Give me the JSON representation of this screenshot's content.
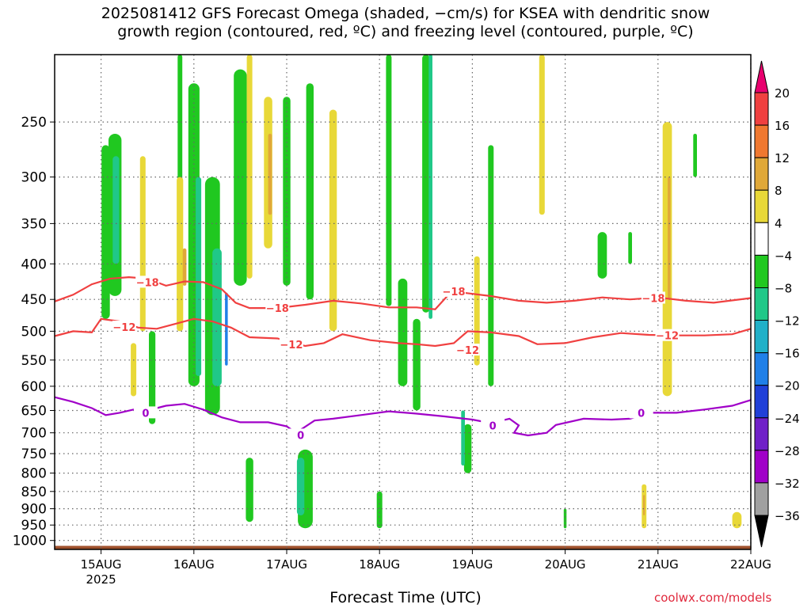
{
  "title": "2025081412 GFS Forecast Omega (shaded, −cm/s) for KSEA with dendritic snow\ngrowth region (contoured, red, ºC) and freezing level (contoured, purple, ºC)",
  "credit": "coolwx.com/models",
  "colors": {
    "dgz_contour": "#f04040",
    "freezing_level": "#a000c8",
    "terrain": "#a0522d",
    "grid": "#666666"
  },
  "chart_data": {
    "type": "heatmap",
    "title": "2025081412 GFS Forecast Omega (shaded, −cm/s) for KSEA with dendritic snow growth region (contoured, red, ºC) and freezing level (contoured, purple, ºC)",
    "xlabel": "Forecast Time (UTC)",
    "ylabel": "",
    "x_start": "2025-08-14 12Z",
    "x_end": "2025-08-22 00Z",
    "xlim": [
      14.5,
      22.0
    ],
    "x_ticks": [
      {
        "day": 15,
        "label": "15AUG",
        "sub": "2025"
      },
      {
        "day": 16,
        "label": "16AUG",
        "sub": ""
      },
      {
        "day": 17,
        "label": "17AUG",
        "sub": ""
      },
      {
        "day": 18,
        "label": "18AUG",
        "sub": ""
      },
      {
        "day": 19,
        "label": "19AUG",
        "sub": ""
      },
      {
        "day": 20,
        "label": "20AUG",
        "sub": ""
      },
      {
        "day": 21,
        "label": "21AUG",
        "sub": ""
      },
      {
        "day": 22,
        "label": "22AUG",
        "sub": ""
      }
    ],
    "y_scale": "log (pressure, hPa)",
    "ylim": [
      1030,
      200
    ],
    "y_ticks": [
      250,
      300,
      350,
      400,
      450,
      500,
      550,
      600,
      650,
      700,
      750,
      800,
      850,
      900,
      950,
      1000
    ],
    "grid": true,
    "colorbar": {
      "labels": [
        "20",
        "16",
        "12",
        "8",
        "4",
        "−4",
        "−8",
        "−12",
        "−16",
        "−20",
        "−24",
        "−28",
        "−32",
        "−36"
      ],
      "colors": [
        "#e8006e",
        "#f04040",
        "#f07830",
        "#e0a838",
        "#e8d838",
        "#ffffff",
        "#20c820",
        "#20c888",
        "#20b0c8",
        "#2080e8",
        "#2040d8",
        "#7020c8",
        "#a000c8",
        "#a0a0a0",
        "#000000"
      ],
      "placement": "right"
    },
    "contours": [
      {
        "name": "-18",
        "color": "#f04040",
        "labels": [
          {
            "day": 15.5,
            "p": 425
          },
          {
            "day": 16.9,
            "p": 463
          },
          {
            "day": 18.8,
            "p": 438
          },
          {
            "day": 20.95,
            "p": 448
          }
        ],
        "points": [
          [
            14.5,
            453
          ],
          [
            14.7,
            443
          ],
          [
            14.9,
            428
          ],
          [
            15.1,
            420
          ],
          [
            15.3,
            418
          ],
          [
            15.5,
            420
          ],
          [
            15.7,
            430
          ],
          [
            15.9,
            424
          ],
          [
            16.1,
            425
          ],
          [
            16.3,
            435
          ],
          [
            16.45,
            455
          ],
          [
            16.6,
            463
          ],
          [
            16.9,
            463
          ],
          [
            17.2,
            458
          ],
          [
            17.5,
            452
          ],
          [
            17.8,
            456
          ],
          [
            18.1,
            462
          ],
          [
            18.4,
            462
          ],
          [
            18.6,
            465
          ],
          [
            18.75,
            442
          ],
          [
            18.9,
            440
          ],
          [
            19.2,
            445
          ],
          [
            19.5,
            452
          ],
          [
            19.8,
            455
          ],
          [
            20.1,
            452
          ],
          [
            20.4,
            447
          ],
          [
            20.7,
            450
          ],
          [
            21.0,
            447
          ],
          [
            21.3,
            452
          ],
          [
            21.6,
            455
          ],
          [
            22.0,
            448
          ]
        ]
      },
      {
        "name": "-12",
        "color": "#f04040",
        "labels": [
          {
            "day": 15.25,
            "p": 493
          },
          {
            "day": 17.05,
            "p": 522
          },
          {
            "day": 18.95,
            "p": 532
          },
          {
            "day": 21.1,
            "p": 507
          }
        ],
        "points": [
          [
            14.5,
            508
          ],
          [
            14.7,
            500
          ],
          [
            14.9,
            502
          ],
          [
            15.0,
            480
          ],
          [
            15.2,
            484
          ],
          [
            15.4,
            494
          ],
          [
            15.6,
            496
          ],
          [
            15.8,
            488
          ],
          [
            16.0,
            480
          ],
          [
            16.2,
            484
          ],
          [
            16.4,
            494
          ],
          [
            16.6,
            510
          ],
          [
            16.9,
            512
          ],
          [
            17.2,
            525
          ],
          [
            17.4,
            520
          ],
          [
            17.6,
            505
          ],
          [
            17.9,
            515
          ],
          [
            18.2,
            520
          ],
          [
            18.4,
            522
          ],
          [
            18.6,
            525
          ],
          [
            18.8,
            520
          ],
          [
            18.95,
            500
          ],
          [
            19.2,
            502
          ],
          [
            19.5,
            508
          ],
          [
            19.7,
            522
          ],
          [
            20.0,
            520
          ],
          [
            20.3,
            510
          ],
          [
            20.6,
            503
          ],
          [
            20.9,
            506
          ],
          [
            21.2,
            507
          ],
          [
            21.5,
            507
          ],
          [
            21.8,
            505
          ],
          [
            22.0,
            496
          ]
        ]
      },
      {
        "name": "0",
        "color": "#a000c8",
        "labels": [
          {
            "day": 15.48,
            "p": 655
          },
          {
            "day": 17.15,
            "p": 705
          },
          {
            "day": 19.22,
            "p": 683
          },
          {
            "day": 20.82,
            "p": 655
          }
        ],
        "points": [
          [
            14.5,
            622
          ],
          [
            14.7,
            632
          ],
          [
            14.9,
            645
          ],
          [
            15.05,
            660
          ],
          [
            15.2,
            655
          ],
          [
            15.35,
            648
          ],
          [
            15.5,
            650
          ],
          [
            15.7,
            640
          ],
          [
            15.9,
            636
          ],
          [
            16.1,
            648
          ],
          [
            16.3,
            665
          ],
          [
            16.5,
            676
          ],
          [
            16.8,
            676
          ],
          [
            17.0,
            685
          ],
          [
            17.1,
            700
          ],
          [
            17.3,
            672
          ],
          [
            17.5,
            668
          ],
          [
            17.8,
            660
          ],
          [
            18.1,
            652
          ],
          [
            18.4,
            657
          ],
          [
            18.7,
            663
          ],
          [
            19.0,
            670
          ],
          [
            19.2,
            678
          ],
          [
            19.4,
            668
          ],
          [
            19.5,
            683
          ],
          [
            19.45,
            700
          ],
          [
            19.6,
            706
          ],
          [
            19.8,
            700
          ],
          [
            19.9,
            682
          ],
          [
            20.2,
            668
          ],
          [
            20.5,
            670
          ],
          [
            20.7,
            668
          ],
          [
            20.9,
            655
          ],
          [
            21.2,
            655
          ],
          [
            21.5,
            648
          ],
          [
            21.8,
            640
          ],
          [
            22.0,
            628
          ]
        ]
      }
    ],
    "omega_cells": [
      {
        "day": 15.05,
        "p_top": 270,
        "p_bot": 480,
        "w": 0.09,
        "lvl": "g"
      },
      {
        "day": 15.15,
        "p_top": 260,
        "p_bot": 445,
        "w": 0.14,
        "lvl": "g"
      },
      {
        "day": 15.16,
        "p_top": 280,
        "p_bot": 400,
        "w": 0.07,
        "lvl": "t"
      },
      {
        "day": 15.45,
        "p_top": 280,
        "p_bot": 500,
        "w": 0.06,
        "lvl": "y"
      },
      {
        "day": 15.55,
        "p_top": 500,
        "p_bot": 680,
        "w": 0.07,
        "lvl": "g"
      },
      {
        "day": 15.35,
        "p_top": 520,
        "p_bot": 620,
        "w": 0.06,
        "lvl": "y"
      },
      {
        "day": 15.85,
        "p_top": 200,
        "p_bot": 370,
        "w": 0.05,
        "lvl": "g"
      },
      {
        "day": 15.85,
        "p_top": 300,
        "p_bot": 500,
        "w": 0.07,
        "lvl": "y"
      },
      {
        "day": 15.9,
        "p_top": 380,
        "p_bot": 430,
        "w": 0.04,
        "lvl": "o"
      },
      {
        "day": 16.0,
        "p_top": 220,
        "p_bot": 600,
        "w": 0.12,
        "lvl": "g"
      },
      {
        "day": 16.05,
        "p_top": 300,
        "p_bot": 580,
        "w": 0.06,
        "lvl": "t"
      },
      {
        "day": 16.2,
        "p_top": 300,
        "p_bot": 660,
        "w": 0.16,
        "lvl": "g"
      },
      {
        "day": 16.25,
        "p_top": 380,
        "p_bot": 600,
        "w": 0.1,
        "lvl": "t"
      },
      {
        "day": 16.35,
        "p_top": 440,
        "p_bot": 560,
        "w": 0.03,
        "lvl": "b"
      },
      {
        "day": 16.5,
        "p_top": 210,
        "p_bot": 430,
        "w": 0.14,
        "lvl": "g"
      },
      {
        "day": 16.6,
        "p_top": 200,
        "p_bot": 420,
        "w": 0.06,
        "lvl": "y"
      },
      {
        "day": 16.6,
        "p_top": 760,
        "p_bot": 940,
        "w": 0.08,
        "lvl": "g"
      },
      {
        "day": 16.8,
        "p_top": 230,
        "p_bot": 380,
        "w": 0.09,
        "lvl": "y"
      },
      {
        "day": 16.82,
        "p_top": 260,
        "p_bot": 340,
        "w": 0.04,
        "lvl": "o"
      },
      {
        "day": 17.0,
        "p_top": 230,
        "p_bot": 430,
        "w": 0.08,
        "lvl": "g"
      },
      {
        "day": 17.2,
        "p_top": 740,
        "p_bot": 960,
        "w": 0.16,
        "lvl": "g"
      },
      {
        "day": 17.15,
        "p_top": 760,
        "p_bot": 920,
        "w": 0.08,
        "lvl": "t"
      },
      {
        "day": 17.25,
        "p_top": 220,
        "p_bot": 450,
        "w": 0.08,
        "lvl": "g"
      },
      {
        "day": 17.5,
        "p_top": 240,
        "p_bot": 500,
        "w": 0.08,
        "lvl": "y"
      },
      {
        "day": 18.0,
        "p_top": 850,
        "p_bot": 960,
        "w": 0.06,
        "lvl": "g"
      },
      {
        "day": 18.1,
        "p_top": 200,
        "p_bot": 460,
        "w": 0.06,
        "lvl": "g"
      },
      {
        "day": 18.25,
        "p_top": 420,
        "p_bot": 600,
        "w": 0.1,
        "lvl": "g"
      },
      {
        "day": 18.4,
        "p_top": 480,
        "p_bot": 650,
        "w": 0.08,
        "lvl": "g"
      },
      {
        "day": 18.5,
        "p_top": 200,
        "p_bot": 470,
        "w": 0.08,
        "lvl": "g"
      },
      {
        "day": 18.55,
        "p_top": 200,
        "p_bot": 480,
        "w": 0.04,
        "lvl": "t"
      },
      {
        "day": 18.95,
        "p_top": 680,
        "p_bot": 800,
        "w": 0.08,
        "lvl": "g"
      },
      {
        "day": 18.9,
        "p_top": 650,
        "p_bot": 780,
        "w": 0.04,
        "lvl": "t"
      },
      {
        "day": 19.05,
        "p_top": 390,
        "p_bot": 560,
        "w": 0.06,
        "lvl": "y"
      },
      {
        "day": 19.2,
        "p_top": 270,
        "p_bot": 600,
        "w": 0.06,
        "lvl": "g"
      },
      {
        "day": 19.75,
        "p_top": 200,
        "p_bot": 340,
        "w": 0.06,
        "lvl": "y"
      },
      {
        "day": 20.0,
        "p_top": 900,
        "p_bot": 960,
        "w": 0.03,
        "lvl": "g"
      },
      {
        "day": 20.4,
        "p_top": 360,
        "p_bot": 420,
        "w": 0.1,
        "lvl": "g"
      },
      {
        "day": 20.7,
        "p_top": 360,
        "p_bot": 400,
        "w": 0.04,
        "lvl": "g"
      },
      {
        "day": 20.85,
        "p_top": 830,
        "p_bot": 960,
        "w": 0.05,
        "lvl": "y"
      },
      {
        "day": 20.85,
        "p_top": 860,
        "p_bot": 920,
        "w": 0.02,
        "lvl": "o"
      },
      {
        "day": 21.1,
        "p_top": 250,
        "p_bot": 620,
        "w": 0.1,
        "lvl": "y"
      },
      {
        "day": 21.12,
        "p_top": 300,
        "p_bot": 450,
        "w": 0.03,
        "lvl": "o"
      },
      {
        "day": 21.4,
        "p_top": 260,
        "p_bot": 300,
        "w": 0.04,
        "lvl": "g"
      },
      {
        "day": 21.85,
        "p_top": 910,
        "p_bot": 960,
        "w": 0.1,
        "lvl": "y"
      }
    ],
    "terrain_top_hpa": 1018
  }
}
